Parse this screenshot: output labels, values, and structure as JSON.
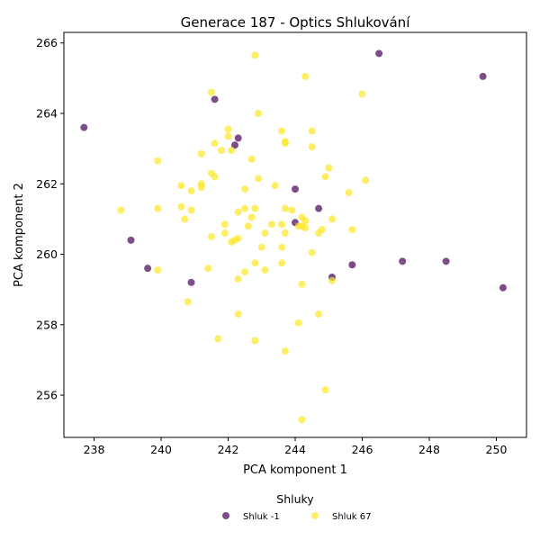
{
  "chart_data": {
    "type": "scatter",
    "title": "Generace 187 - Optics Shlukování",
    "xlabel": "PCA komponent 1",
    "ylabel": "PCA komponent 2",
    "xlim": [
      237.1,
      250.9
    ],
    "ylim": [
      254.8,
      266.3
    ],
    "x_ticks": [
      238,
      240,
      242,
      244,
      246,
      248,
      250
    ],
    "y_ticks": [
      256,
      258,
      260,
      262,
      264,
      266
    ],
    "grid": false,
    "legend": {
      "title": "Shluky",
      "placement": "bottom-center"
    },
    "series": [
      {
        "name": "Shluk -1",
        "color": "#440154",
        "points": [
          [
            237.7,
            263.6
          ],
          [
            239.1,
            260.4
          ],
          [
            239.6,
            259.6
          ],
          [
            240.9,
            259.2
          ],
          [
            241.6,
            264.4
          ],
          [
            242.2,
            263.1
          ],
          [
            242.3,
            263.3
          ],
          [
            244.0,
            261.85
          ],
          [
            244.0,
            260.9
          ],
          [
            244.7,
            261.3
          ],
          [
            245.1,
            259.35
          ],
          [
            245.7,
            259.7
          ],
          [
            246.5,
            265.7
          ],
          [
            247.2,
            259.8
          ],
          [
            248.5,
            259.8
          ],
          [
            249.6,
            265.05
          ],
          [
            250.2,
            259.05
          ]
        ]
      },
      {
        "name": "Shluk 67",
        "color": "#fde725",
        "points": [
          [
            242.8,
            265.65
          ],
          [
            244.3,
            265.05
          ],
          [
            241.5,
            264.6
          ],
          [
            246.0,
            264.55
          ],
          [
            242.9,
            264.0
          ],
          [
            242.0,
            263.55
          ],
          [
            243.6,
            263.5
          ],
          [
            244.5,
            263.5
          ],
          [
            242.0,
            263.35
          ],
          [
            241.6,
            263.15
          ],
          [
            243.7,
            263.15
          ],
          [
            243.7,
            263.2
          ],
          [
            244.5,
            263.05
          ],
          [
            241.8,
            262.95
          ],
          [
            242.1,
            262.95
          ],
          [
            241.2,
            262.85
          ],
          [
            242.7,
            262.7
          ],
          [
            239.9,
            262.65
          ],
          [
            245.0,
            262.45
          ],
          [
            241.5,
            262.3
          ],
          [
            241.6,
            262.2
          ],
          [
            242.9,
            262.15
          ],
          [
            244.9,
            262.2
          ],
          [
            246.1,
            262.1
          ],
          [
            240.6,
            261.95
          ],
          [
            241.2,
            262.0
          ],
          [
            241.2,
            261.9
          ],
          [
            243.4,
            261.95
          ],
          [
            240.9,
            261.8
          ],
          [
            242.5,
            261.85
          ],
          [
            245.6,
            261.75
          ],
          [
            238.8,
            261.25
          ],
          [
            239.9,
            261.3
          ],
          [
            240.6,
            261.35
          ],
          [
            240.9,
            261.25
          ],
          [
            242.3,
            261.2
          ],
          [
            242.5,
            261.3
          ],
          [
            242.8,
            261.3
          ],
          [
            243.7,
            261.3
          ],
          [
            243.9,
            261.25
          ],
          [
            240.7,
            261.0
          ],
          [
            242.7,
            261.05
          ],
          [
            244.2,
            261.05
          ],
          [
            244.3,
            260.95
          ],
          [
            245.1,
            261.0
          ],
          [
            241.9,
            260.85
          ],
          [
            242.6,
            260.8
          ],
          [
            243.3,
            260.85
          ],
          [
            243.6,
            260.85
          ],
          [
            244.1,
            260.8
          ],
          [
            244.2,
            260.8
          ],
          [
            244.3,
            260.75
          ],
          [
            244.8,
            260.7
          ],
          [
            245.7,
            260.7
          ],
          [
            244.7,
            260.6
          ],
          [
            241.9,
            260.6
          ],
          [
            243.1,
            260.6
          ],
          [
            243.7,
            260.6
          ],
          [
            241.5,
            260.5
          ],
          [
            242.1,
            260.35
          ],
          [
            242.2,
            260.4
          ],
          [
            242.3,
            260.45
          ],
          [
            243.0,
            260.2
          ],
          [
            243.6,
            260.2
          ],
          [
            244.5,
            260.05
          ],
          [
            242.8,
            259.75
          ],
          [
            243.6,
            259.75
          ],
          [
            241.4,
            259.6
          ],
          [
            239.9,
            259.55
          ],
          [
            242.5,
            259.5
          ],
          [
            243.1,
            259.55
          ],
          [
            242.3,
            259.3
          ],
          [
            245.1,
            259.25
          ],
          [
            244.2,
            259.15
          ],
          [
            240.8,
            258.65
          ],
          [
            242.3,
            258.3
          ],
          [
            244.7,
            258.3
          ],
          [
            244.1,
            258.05
          ],
          [
            241.7,
            257.6
          ],
          [
            242.8,
            257.55
          ],
          [
            243.7,
            257.25
          ],
          [
            244.9,
            256.15
          ],
          [
            244.2,
            255.3
          ]
        ]
      }
    ]
  }
}
